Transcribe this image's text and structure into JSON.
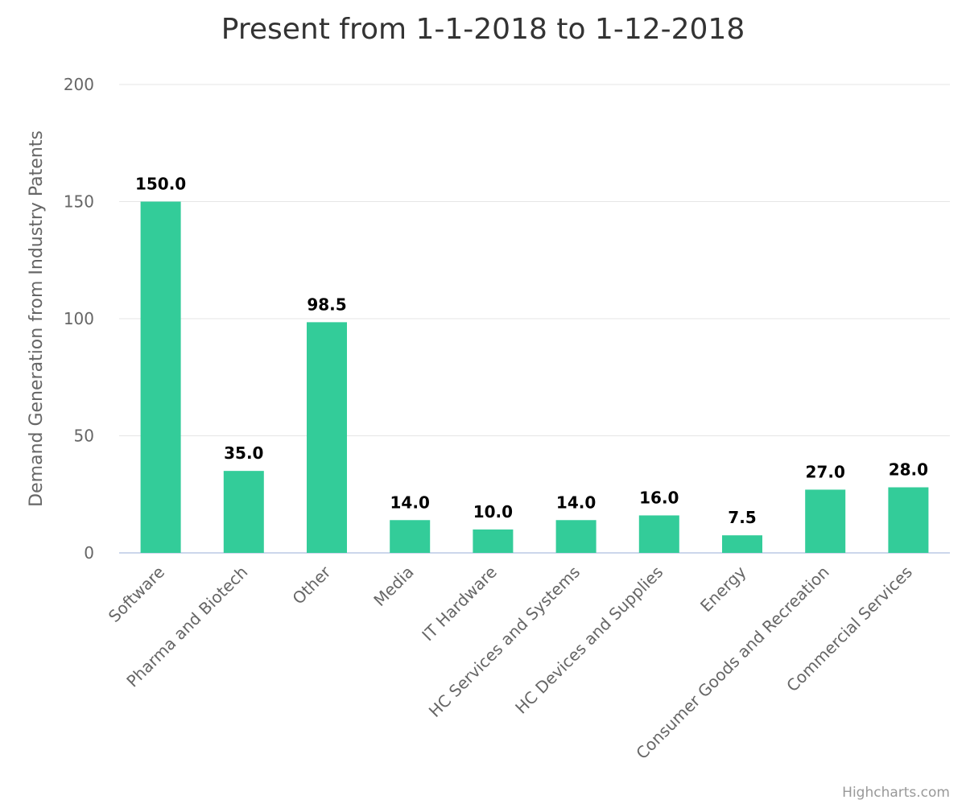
{
  "chart_data": {
    "type": "bar",
    "title": "Present from 1-1-2018 to 1-12-2018",
    "xlabel": "",
    "ylabel": "Demand Generation from Industry Patents",
    "ylim": [
      0,
      200
    ],
    "yticks": [
      0,
      50,
      100,
      150,
      200
    ],
    "grid": true,
    "categories": [
      "Software",
      "Pharma and Biotech",
      "Other",
      "Media",
      "IT Hardware",
      "HC Services and Systems",
      "HC Devices and Supplies",
      "Energy",
      "Consumer Goods and Recreation",
      "Commercial Services"
    ],
    "values": [
      150,
      35,
      98.5,
      14,
      10,
      14,
      16,
      7.5,
      27,
      28
    ],
    "data_labels": [
      "150.0",
      "35.0",
      "98.5",
      "14.0",
      "10.0",
      "14.0",
      "16.0",
      "7.5",
      "27.0",
      "28.0"
    ],
    "colors": {
      "bar": "#33cc99",
      "grid": "#e6e6e6",
      "axis": "#ccd6eb"
    }
  },
  "credits": "Highcharts.com"
}
